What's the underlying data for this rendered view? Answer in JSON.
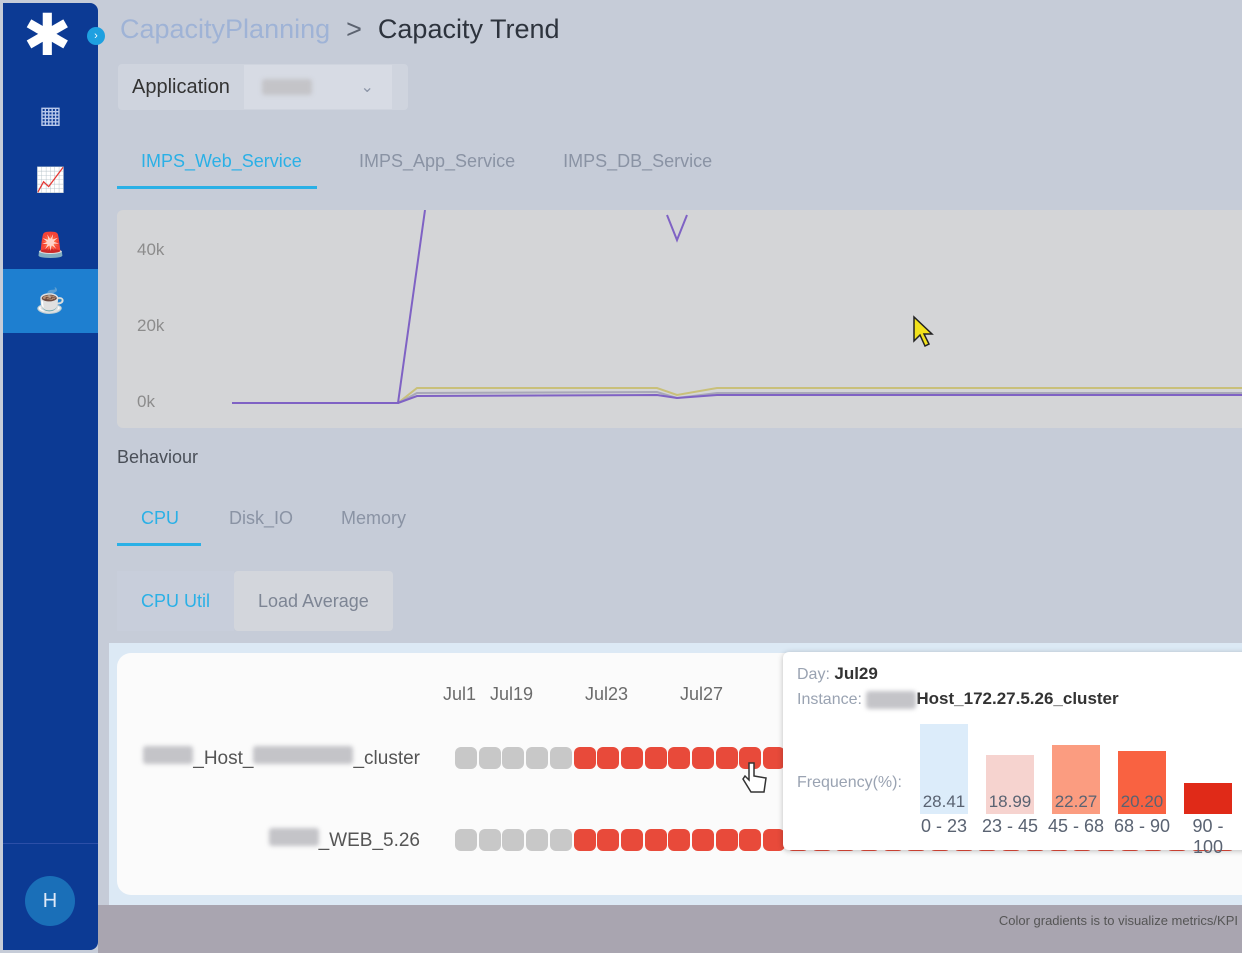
{
  "sidebar": {
    "avatar_initial": "H",
    "items": [
      "dashboard-icon",
      "analytics-icon",
      "alarm-icon",
      "capacity-icon"
    ]
  },
  "breadcrumb": {
    "parent": "CapacityPlanning",
    "separator": ">",
    "current": "Capacity Trend"
  },
  "filter": {
    "label": "Application",
    "value": "",
    "chevron": "⌄"
  },
  "service_tabs": [
    "IMPS_Web_Service",
    "IMPS_App_Service",
    "IMPS_DB_Service"
  ],
  "chart_data": {
    "type": "line",
    "y_ticks": [
      "40k",
      "20k",
      "0k"
    ],
    "ylim": [
      0,
      50000
    ]
  },
  "behaviour": {
    "title": "Behaviour",
    "tabs": [
      "CPU",
      "Disk_IO",
      "Memory"
    ],
    "subtabs": [
      "CPU Util",
      "Load Average"
    ]
  },
  "heatmap": {
    "dates": [
      "Jul1",
      "Jul19",
      "Jul23",
      "Jul27"
    ],
    "rows": [
      {
        "prefix": "_Host_",
        "suffix": "_cluster"
      },
      {
        "prefix": "",
        "suffix": "_WEB_5.26"
      }
    ],
    "colors": {
      "low": "#c8c8c8",
      "high": "#e84a3a"
    }
  },
  "tooltip": {
    "day_label": "Day:",
    "day": "Jul29",
    "instance_label": "Instance:",
    "instance": "Host_172.27.5.26_cluster",
    "freq_label": "Frequency(%):",
    "bins": [
      {
        "range": "0 - 23",
        "value": "28.41",
        "color": "#dcecfa"
      },
      {
        "range": "23 - 45",
        "value": "18.99",
        "color": "#f6d3cf"
      },
      {
        "range": "45 - 68",
        "value": "22.27",
        "color": "#fb9c80"
      },
      {
        "range": "68 - 90",
        "value": "20.20",
        "color": "#f96241"
      },
      {
        "range": "90 - 100",
        "value": "",
        "color": "#e02a18"
      }
    ]
  },
  "footer_note": "Color gradients is to visualize metrics/KPI"
}
